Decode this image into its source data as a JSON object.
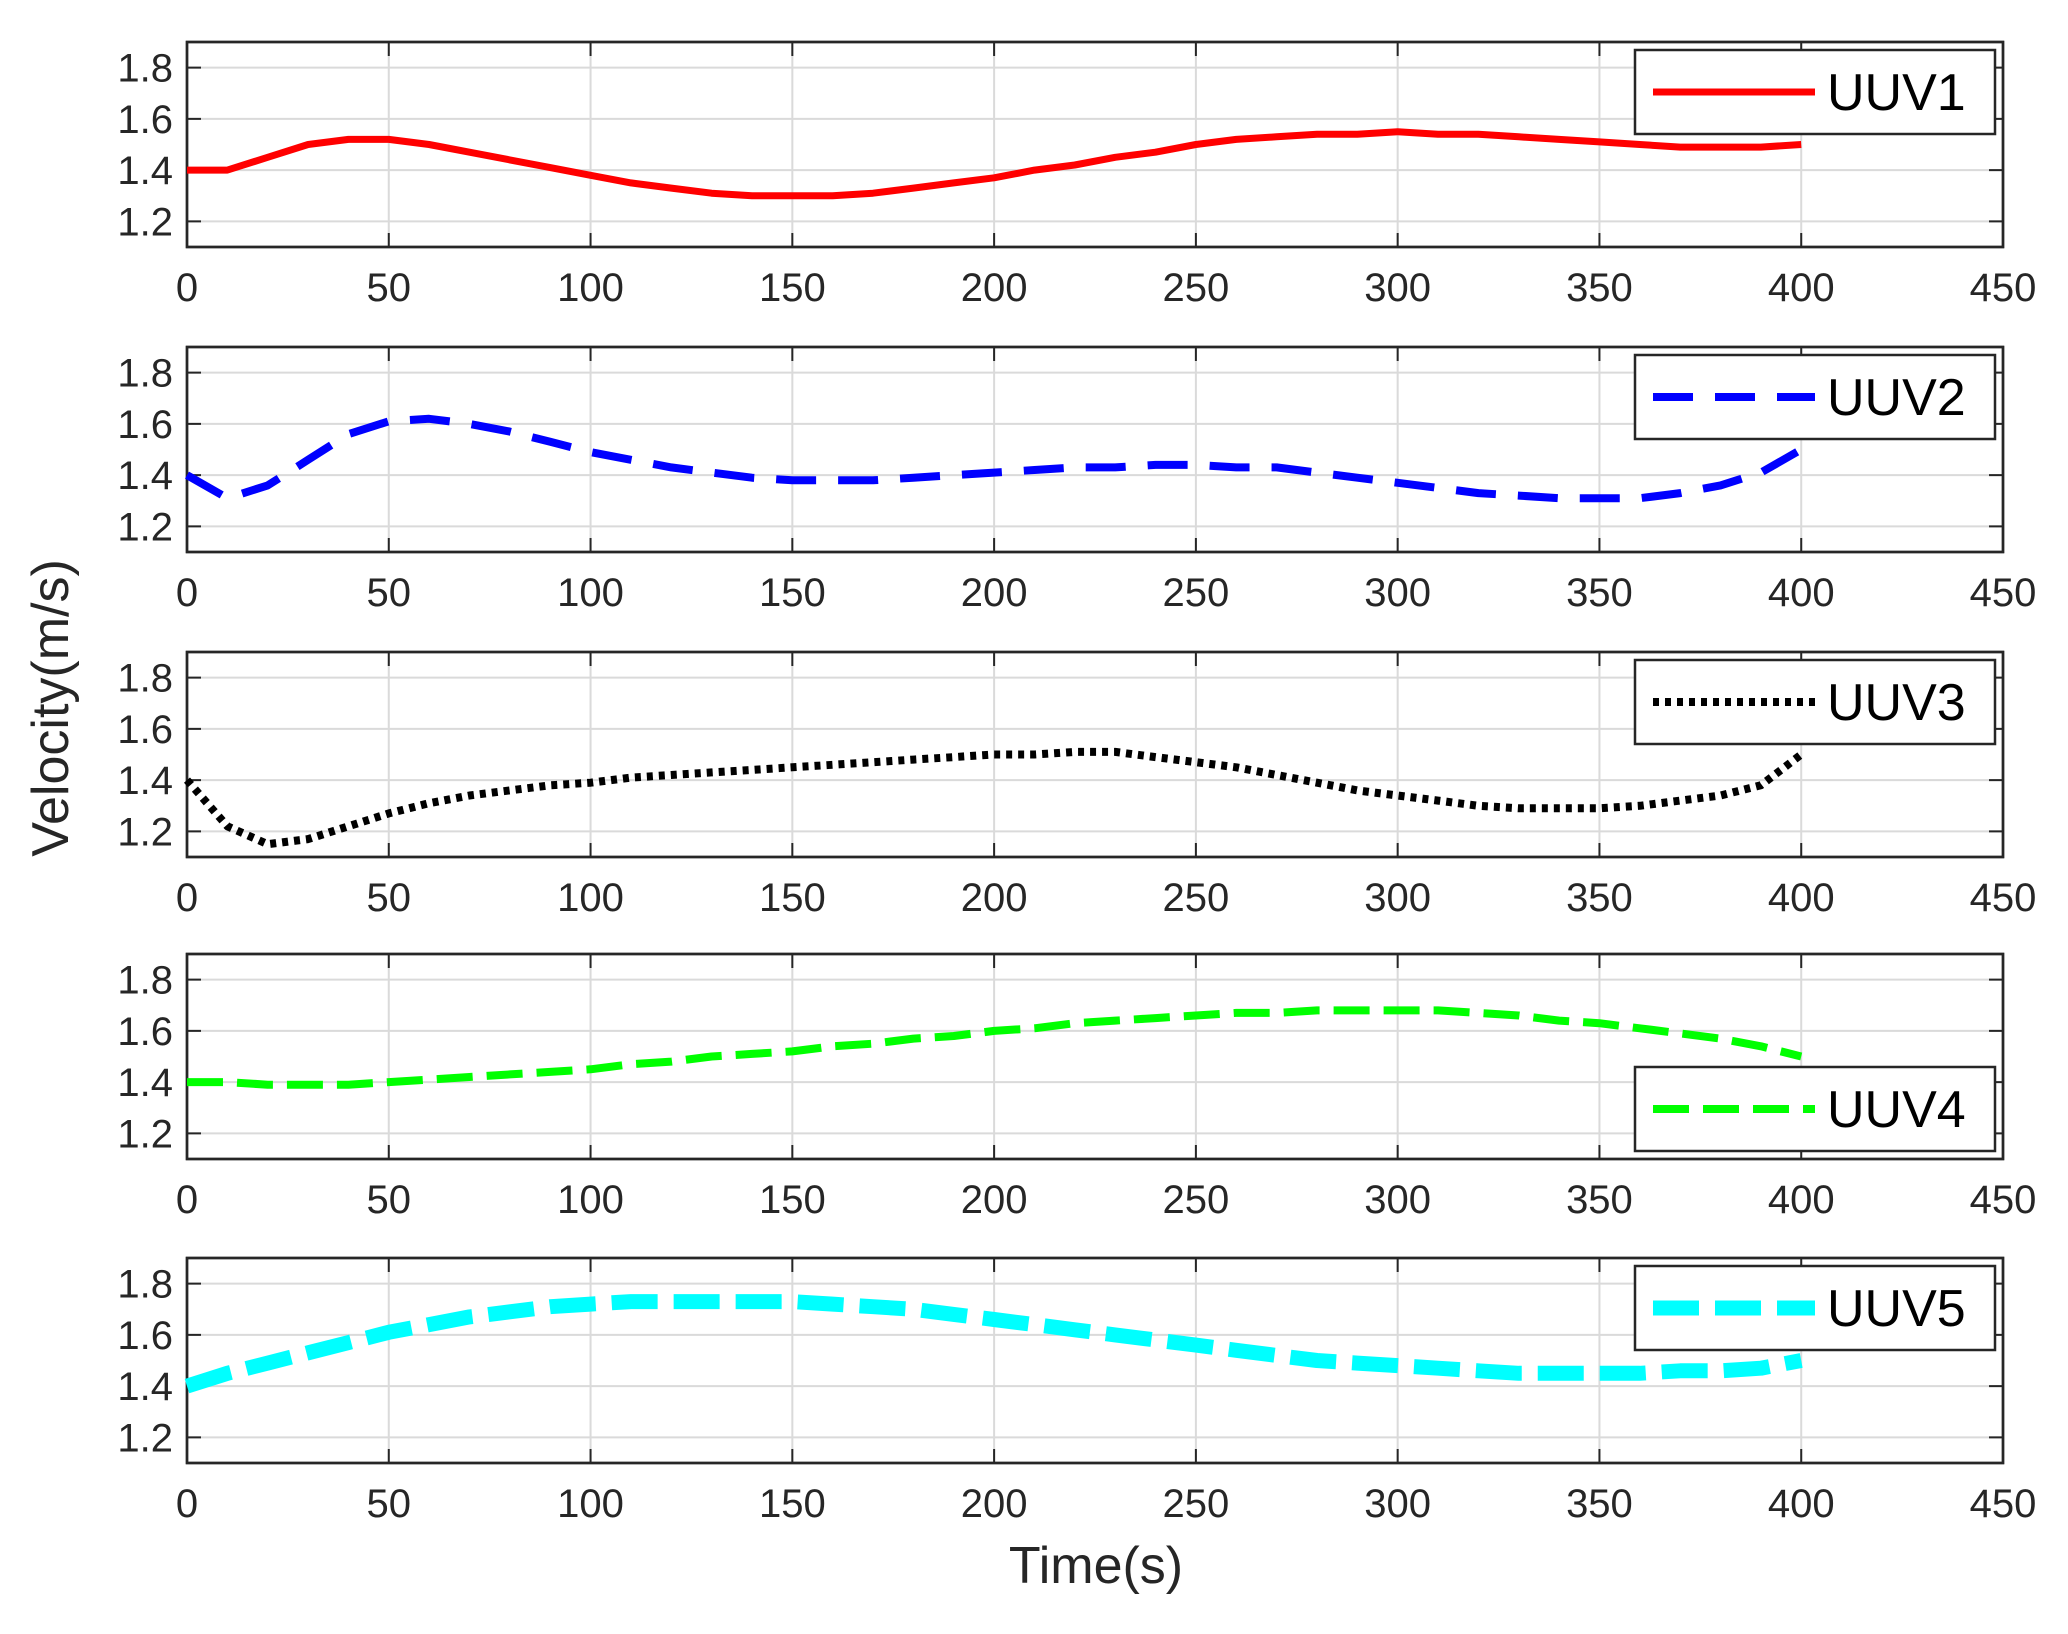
{
  "chart_data": {
    "type": "line",
    "xlabel": "Time(s)",
    "ylabel": "Velocity(m/s)",
    "xlim": [
      0,
      450
    ],
    "ylim": [
      1.1,
      1.9
    ],
    "xticks": [
      0,
      50,
      100,
      150,
      200,
      250,
      300,
      350,
      400,
      450
    ],
    "yticks": [
      1.2,
      1.4,
      1.6,
      1.8
    ],
    "xtick_labels": [
      "0",
      "50",
      "100",
      "150",
      "200",
      "250",
      "300",
      "350",
      "400",
      "450"
    ],
    "ytick_labels": [
      "1.2",
      "1.4",
      "1.6",
      "1.8"
    ],
    "grid": true,
    "x": [
      0,
      10,
      20,
      30,
      40,
      50,
      60,
      70,
      80,
      90,
      100,
      110,
      120,
      130,
      140,
      150,
      160,
      170,
      180,
      190,
      200,
      210,
      220,
      230,
      240,
      250,
      260,
      270,
      280,
      290,
      300,
      310,
      320,
      330,
      340,
      350,
      360,
      370,
      380,
      390,
      400
    ],
    "series": [
      {
        "name": "UUV1",
        "color": "#ff0000",
        "style": "solid",
        "legend_position": "top-right",
        "values": [
          1.4,
          1.4,
          1.45,
          1.5,
          1.52,
          1.52,
          1.5,
          1.47,
          1.44,
          1.41,
          1.38,
          1.35,
          1.33,
          1.31,
          1.3,
          1.3,
          1.3,
          1.31,
          1.33,
          1.35,
          1.37,
          1.4,
          1.42,
          1.45,
          1.47,
          1.5,
          1.52,
          1.53,
          1.54,
          1.54,
          1.55,
          1.54,
          1.54,
          1.53,
          1.52,
          1.51,
          1.5,
          1.49,
          1.49,
          1.49,
          1.5
        ]
      },
      {
        "name": "UUV2",
        "color": "#0000ff",
        "style": "dashed",
        "legend_position": "top-right",
        "values": [
          1.4,
          1.31,
          1.36,
          1.46,
          1.56,
          1.61,
          1.62,
          1.6,
          1.57,
          1.53,
          1.49,
          1.46,
          1.43,
          1.41,
          1.39,
          1.38,
          1.38,
          1.38,
          1.39,
          1.4,
          1.41,
          1.42,
          1.43,
          1.43,
          1.44,
          1.44,
          1.43,
          1.43,
          1.41,
          1.39,
          1.37,
          1.35,
          1.33,
          1.32,
          1.31,
          1.31,
          1.31,
          1.33,
          1.36,
          1.41,
          1.5
        ]
      },
      {
        "name": "UUV3",
        "color": "#000000",
        "style": "dotted",
        "legend_position": "top-right",
        "values": [
          1.4,
          1.22,
          1.15,
          1.17,
          1.22,
          1.27,
          1.31,
          1.34,
          1.36,
          1.38,
          1.39,
          1.41,
          1.42,
          1.43,
          1.44,
          1.45,
          1.46,
          1.47,
          1.48,
          1.49,
          1.5,
          1.5,
          1.51,
          1.51,
          1.49,
          1.47,
          1.45,
          1.42,
          1.39,
          1.36,
          1.34,
          1.32,
          1.3,
          1.29,
          1.29,
          1.29,
          1.3,
          1.32,
          1.34,
          1.38,
          1.5
        ]
      },
      {
        "name": "UUV4",
        "color": "#00ff00",
        "style": "dashed",
        "legend_position": "bottom-right",
        "values": [
          1.4,
          1.4,
          1.39,
          1.39,
          1.39,
          1.4,
          1.41,
          1.42,
          1.43,
          1.44,
          1.45,
          1.47,
          1.48,
          1.5,
          1.51,
          1.52,
          1.54,
          1.55,
          1.57,
          1.58,
          1.6,
          1.61,
          1.63,
          1.64,
          1.65,
          1.66,
          1.67,
          1.67,
          1.68,
          1.68,
          1.68,
          1.68,
          1.67,
          1.66,
          1.64,
          1.63,
          1.61,
          1.59,
          1.57,
          1.54,
          1.5
        ]
      },
      {
        "name": "UUV5",
        "color": "#00ffff",
        "style": "dashed",
        "legend_position": "top-right",
        "values": [
          1.4,
          1.45,
          1.49,
          1.53,
          1.57,
          1.61,
          1.64,
          1.67,
          1.69,
          1.71,
          1.72,
          1.73,
          1.73,
          1.73,
          1.73,
          1.73,
          1.72,
          1.71,
          1.7,
          1.68,
          1.66,
          1.64,
          1.62,
          1.6,
          1.58,
          1.56,
          1.54,
          1.52,
          1.5,
          1.49,
          1.48,
          1.47,
          1.46,
          1.45,
          1.45,
          1.45,
          1.45,
          1.46,
          1.46,
          1.47,
          1.5
        ]
      }
    ]
  }
}
